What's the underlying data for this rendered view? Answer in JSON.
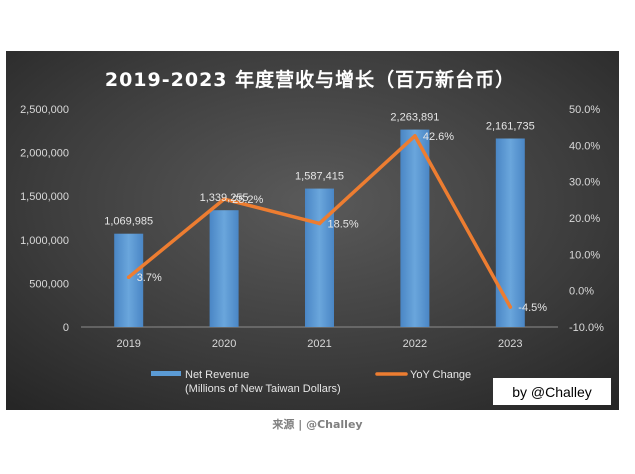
{
  "chart_data": {
    "type": "bar+line",
    "title": "2019-2023 年度营收与增长（百万新台币）",
    "categories": [
      "2019",
      "2020",
      "2021",
      "2022",
      "2023"
    ],
    "series": [
      {
        "name": "Net Revenue\n(Millions of New Taiwan Dollars)",
        "type": "bar",
        "axis": "left",
        "values": [
          1069985,
          1339255,
          1587415,
          2263891,
          2161735
        ],
        "labels": [
          "1,069,985",
          "1,339,255",
          "1,587,415",
          "2,263,891",
          "2,161,735"
        ],
        "color": "#5b9bd5"
      },
      {
        "name": "YoY Change",
        "type": "line",
        "axis": "right",
        "values": [
          3.7,
          25.2,
          18.5,
          42.6,
          -4.5
        ],
        "labels": [
          "3.7%",
          "25.2%",
          "18.5%",
          "42.6%",
          "-4.5%"
        ],
        "color": "#ed7d31"
      }
    ],
    "y_left": {
      "range": [
        0,
        2500000
      ],
      "ticks": [
        0,
        500000,
        1000000,
        1500000,
        2000000,
        2500000
      ],
      "tick_labels": [
        "0",
        "500,000",
        "1,000,000",
        "1,500,000",
        "2,000,000",
        "2,500,000"
      ]
    },
    "y_right": {
      "range": [
        -10,
        50
      ],
      "ticks": [
        -10,
        0,
        10,
        20,
        30,
        40,
        50
      ],
      "tick_labels": [
        "-10.0%",
        "0.0%",
        "10.0%",
        "20.0%",
        "30.0%",
        "40.0%",
        "50.0%"
      ]
    },
    "grid": false,
    "legend": "bottom",
    "watermark": "by @Challey",
    "background": "#3a3a3a"
  },
  "caption": "来源 | @Challey"
}
